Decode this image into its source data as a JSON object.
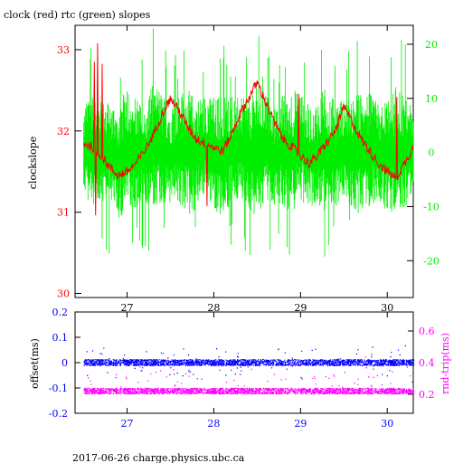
{
  "page": {
    "title": "clock (red) rtc (green) slopes",
    "footer": "2017-06-26 charge.physics.ubc.ca"
  },
  "colors": {
    "clock": "#ff0000",
    "rtc": "#00ee00",
    "offset": "#0000ff",
    "rndtrip": "#ff00ff",
    "frame": "#000000"
  },
  "chart_data": [
    {
      "type": "line",
      "title": "clock (red) rtc (green) slopes",
      "ylabel": "clockslope",
      "xlim": [
        26.4,
        30.3
      ],
      "ylim": [
        29.95,
        33.3
      ],
      "y2lim": [
        -26.8,
        23.5
      ],
      "xticks": [
        "27",
        "28",
        "29",
        "30"
      ],
      "yticks": [
        "30",
        "31",
        "32",
        "33"
      ],
      "y2ticks": [
        "20",
        "10",
        "0",
        "-10",
        "-20"
      ],
      "series": [
        {
          "name": "clock",
          "axis": "left",
          "x": [
            26.5,
            26.6,
            26.7,
            26.8,
            26.9,
            27.0,
            27.1,
            27.2,
            27.3,
            27.4,
            27.5,
            27.6,
            27.7,
            27.8,
            27.9,
            28.0,
            28.1,
            28.2,
            28.3,
            28.4,
            28.5,
            28.6,
            28.7,
            28.8,
            28.9,
            29.0,
            29.1,
            29.2,
            29.3,
            29.4,
            29.5,
            29.6,
            29.7,
            29.8,
            29.9,
            30.0,
            30.1,
            30.2,
            30.3
          ],
          "values": [
            31.85,
            31.8,
            31.7,
            31.55,
            31.45,
            31.5,
            31.6,
            31.75,
            31.95,
            32.2,
            32.4,
            32.25,
            32.05,
            31.9,
            31.85,
            31.8,
            31.75,
            31.95,
            32.2,
            32.4,
            32.6,
            32.35,
            32.1,
            31.9,
            31.8,
            31.7,
            31.6,
            31.7,
            31.85,
            32.0,
            32.3,
            32.1,
            31.9,
            31.75,
            31.6,
            31.5,
            31.42,
            31.6,
            31.8
          ]
        },
        {
          "name": "rtc",
          "axis": "right",
          "x": [
            26.5,
            26.6,
            26.7,
            26.8,
            26.9,
            27.0,
            27.1,
            27.2,
            27.3,
            27.4,
            27.5,
            27.6,
            27.7,
            27.8,
            27.9,
            28.0,
            28.1,
            28.2,
            28.3,
            28.4,
            28.5,
            28.6,
            28.7,
            28.8,
            28.9,
            29.0,
            29.1,
            29.2,
            29.3,
            29.4,
            29.5,
            29.6,
            29.7,
            29.8,
            29.9,
            30.0,
            30.1,
            30.2,
            30.3
          ],
          "values": [
            0,
            1.5,
            -1,
            0.5,
            -2,
            1,
            0,
            -1.5,
            2,
            0.5,
            -1,
            1,
            0,
            -0.5,
            1.5,
            0,
            -1,
            0.5,
            1,
            -0.5,
            0,
            1,
            -1,
            0.5,
            0,
            1,
            -0.5,
            0,
            0.5,
            -1,
            1,
            0,
            -0.5,
            0.5,
            0,
            -1,
            0.5,
            0,
            0
          ],
          "band": [
            6,
            9,
            8,
            7,
            8,
            9,
            8,
            7,
            9,
            8,
            7,
            8,
            9,
            8,
            7,
            8,
            9,
            8,
            7,
            8,
            9,
            8,
            7,
            8,
            9,
            8,
            7,
            8,
            9,
            8,
            7,
            8,
            9,
            8,
            7,
            8,
            9,
            8,
            6
          ]
        }
      ]
    },
    {
      "type": "scatter",
      "ylabel": "offset(ms)",
      "y2label": "rnd-trip(ms)",
      "xlim": [
        26.4,
        30.3
      ],
      "ylim": [
        -0.2,
        0.2
      ],
      "y2lim": [
        0.08,
        0.72
      ],
      "xticks": [
        "27",
        "28",
        "29",
        "30"
      ],
      "yticks": [
        "0.2",
        "0.1",
        "0",
        "-0.1",
        "-0.2"
      ],
      "y2ticks": [
        "0.6",
        "0.4",
        "0.2"
      ],
      "series": [
        {
          "name": "offset",
          "axis": "left",
          "center": 0.0,
          "spread": 0.012
        },
        {
          "name": "rnd-trip",
          "axis": "right",
          "center": 0.22,
          "spread": 0.018
        }
      ]
    }
  ]
}
